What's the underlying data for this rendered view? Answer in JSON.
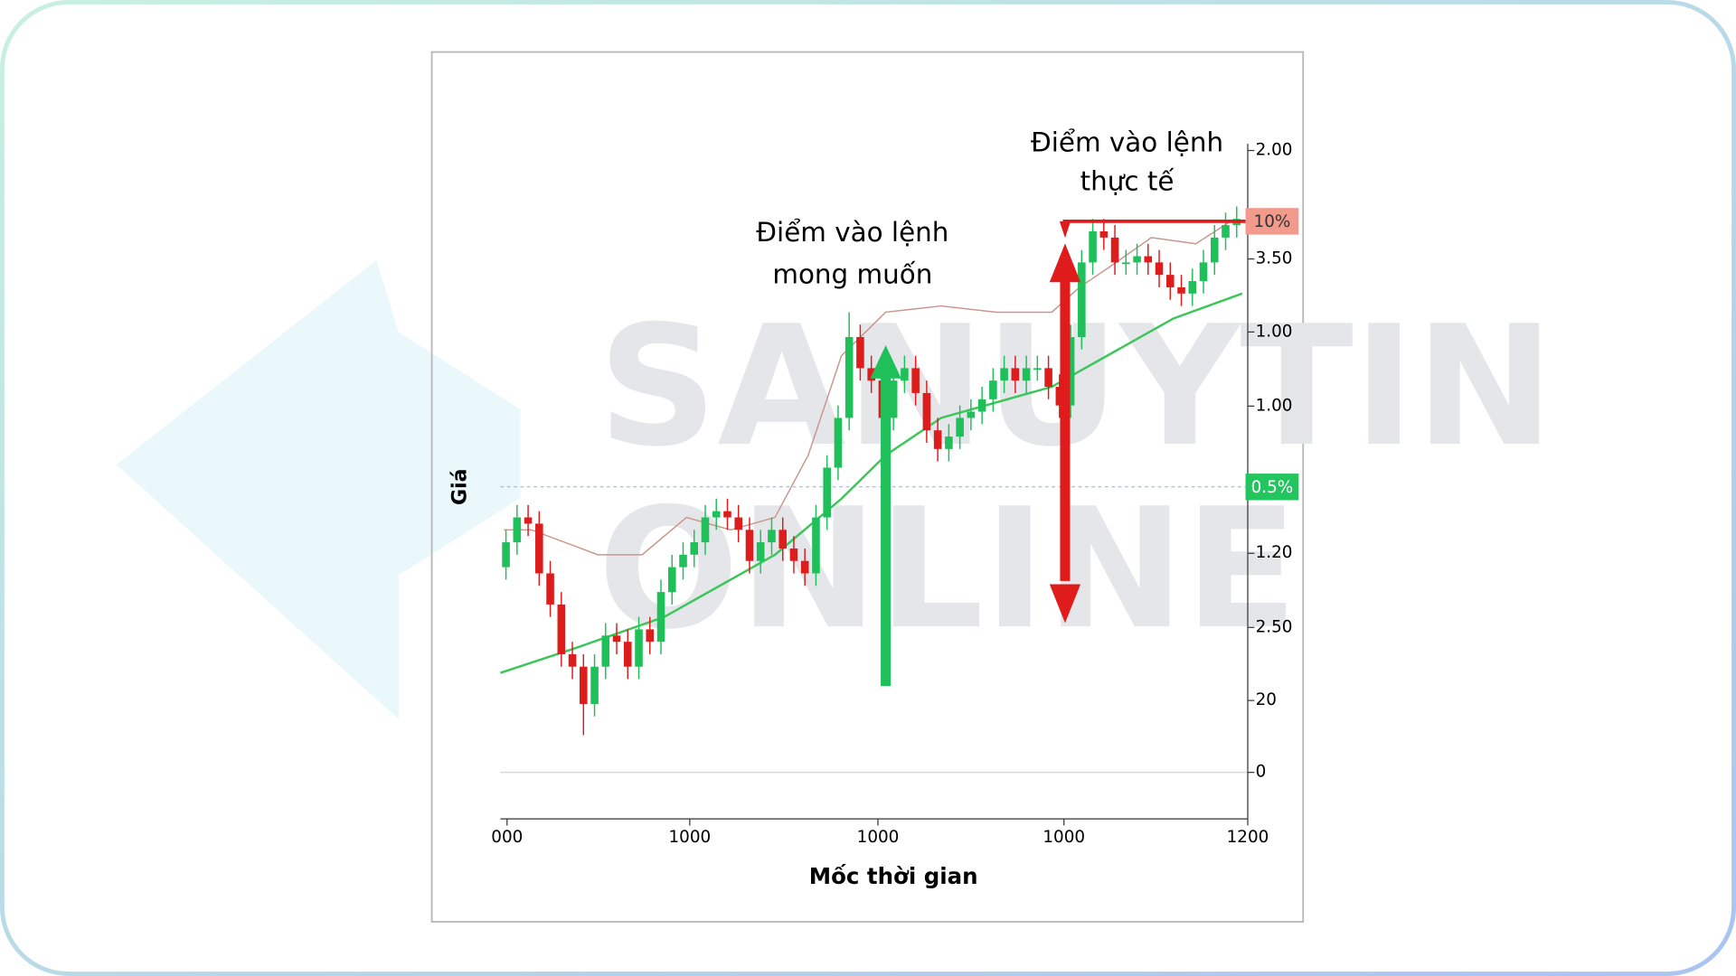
{
  "chart_data": {
    "type": "candlestick",
    "y_label": "Giá",
    "x_label": "Mốc thời gian",
    "y_axis_labels": [
      "2.00",
      "3.50",
      "1.00",
      "1.00",
      "1.20",
      "2.50",
      "20",
      "0"
    ],
    "x_axis_labels": [
      "000",
      "1000",
      "1000",
      "1000",
      "1200"
    ],
    "watermark": [
      "SANUYTIN",
      "ONLINE"
    ],
    "annotations": {
      "desired_entry": [
        "Điểm vào lệnh",
        "mong muốn"
      ],
      "actual_entry": [
        "Điểm vào lệnh",
        "thực tế"
      ],
      "upper_badge": "10%",
      "lower_badge": "0.5%"
    },
    "up_color": "#1fbf5a",
    "down_color": "#dd1c1c",
    "ylim": [
      0,
      100
    ],
    "candles": {
      "open": [
        33,
        37,
        41,
        40,
        32,
        27,
        19,
        17,
        11,
        17,
        22,
        21,
        17,
        23,
        21,
        29,
        33,
        35,
        37,
        41,
        42,
        41,
        39,
        34,
        37,
        39,
        36,
        34,
        32,
        41,
        49,
        57,
        70,
        65,
        63,
        57,
        63,
        65,
        61,
        55,
        52,
        54,
        57,
        58,
        60,
        63,
        65,
        63,
        65,
        65,
        62,
        59,
        70,
        82,
        87,
        86,
        82,
        82,
        83,
        82,
        80,
        78,
        77,
        79,
        82,
        86,
        88
      ],
      "high": [
        39,
        43,
        43,
        42,
        34,
        29,
        21,
        19,
        19,
        24,
        24,
        23,
        25,
        25,
        31,
        35,
        37,
        39,
        43,
        44,
        44,
        43,
        41,
        39,
        41,
        41,
        38,
        36,
        43,
        51,
        59,
        74,
        72,
        67,
        65,
        65,
        67,
        67,
        63,
        57,
        56,
        59,
        60,
        62,
        65,
        67,
        67,
        67,
        67,
        67,
        64,
        72,
        84,
        89,
        89,
        88,
        84,
        85,
        85,
        84,
        82,
        80,
        81,
        84,
        88,
        90,
        91
      ],
      "low": [
        31,
        35,
        38,
        30,
        25,
        17,
        15,
        6,
        9,
        15,
        19,
        15,
        15,
        19,
        19,
        27,
        31,
        33,
        35,
        39,
        39,
        37,
        32,
        32,
        35,
        34,
        32,
        30,
        30,
        39,
        47,
        55,
        63,
        61,
        55,
        55,
        61,
        59,
        53,
        50,
        50,
        52,
        55,
        56,
        58,
        61,
        61,
        61,
        63,
        60,
        57,
        57,
        68,
        80,
        84,
        80,
        80,
        80,
        80,
        78,
        76,
        75,
        75,
        77,
        80,
        84,
        86
      ],
      "close": [
        37,
        41,
        40,
        32,
        27,
        19,
        17,
        11,
        17,
        22,
        21,
        17,
        23,
        21,
        29,
        33,
        35,
        37,
        41,
        42,
        41,
        39,
        34,
        37,
        39,
        36,
        34,
        32,
        41,
        49,
        57,
        70,
        65,
        63,
        57,
        63,
        65,
        61,
        55,
        52,
        54,
        57,
        58,
        60,
        63,
        65,
        63,
        65,
        65,
        62,
        59,
        70,
        82,
        87,
        86,
        82,
        82,
        83,
        82,
        80,
        78,
        77,
        79,
        82,
        86,
        88,
        89
      ]
    },
    "lines": [
      {
        "color": "#3cc65a",
        "x": [
          -0.5,
          6.3,
          14.3,
          24.3,
          30.3,
          34.3,
          39.3,
          49.3,
          54.3,
          60.3,
          66.5
        ],
        "values": [
          16,
          20,
          25,
          35,
          44,
          51,
          57,
          62,
          67,
          73,
          77
        ]
      },
      {
        "color": "#c9968a",
        "x": [
          -0.2,
          2.3,
          8.3,
          12.3,
          16.3,
          20.3,
          24.3,
          27.3,
          30.3,
          34.3,
          39.3,
          44.3,
          49.3,
          51.8,
          54.3,
          58.3,
          62.3,
          65.8
        ],
        "values": [
          39,
          39,
          35,
          35,
          41,
          39,
          41,
          51,
          67,
          74,
          75,
          74,
          74,
          78,
          81,
          86,
          85,
          89
        ]
      }
    ]
  }
}
